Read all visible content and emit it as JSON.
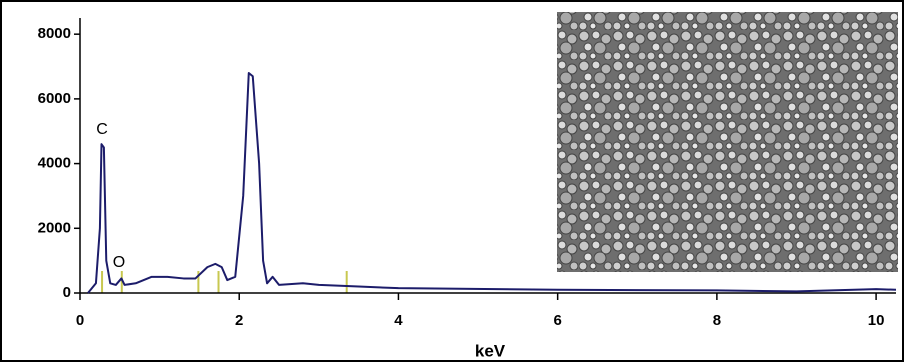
{
  "chart_data": {
    "type": "line",
    "x_label": "keV",
    "annotations": [
      "C",
      "O"
    ],
    "xlim": [
      0,
      10.25
    ],
    "ylim": [
      0,
      8500
    ],
    "xticks": [
      0,
      2,
      4,
      6,
      8,
      10
    ],
    "yticks": [
      0,
      2000,
      4000,
      6000,
      8000
    ],
    "element_lines": [
      0.277,
      0.525,
      1.487,
      1.74,
      3.35
    ],
    "element_line_color": "#c8c850",
    "series": [
      {
        "color": "#1c1c6a",
        "x": [
          0.1,
          0.2,
          0.25,
          0.27,
          0.3,
          0.33,
          0.38,
          0.45,
          0.52,
          0.56,
          0.7,
          0.9,
          1.1,
          1.3,
          1.45,
          1.6,
          1.7,
          1.78,
          1.85,
          1.95,
          2.05,
          2.12,
          2.17,
          2.25,
          2.3,
          2.35,
          2.42,
          2.5,
          2.8,
          3.0,
          3.5,
          4,
          6,
          8,
          9,
          10,
          10.25
        ],
        "values": [
          0,
          300,
          2000,
          4600,
          4500,
          1000,
          300,
          250,
          450,
          250,
          300,
          500,
          500,
          450,
          450,
          800,
          900,
          800,
          400,
          500,
          3000,
          6800,
          6700,
          4000,
          1000,
          300,
          500,
          250,
          300,
          250,
          200,
          150,
          100,
          80,
          50,
          120,
          100
        ]
      }
    ]
  }
}
